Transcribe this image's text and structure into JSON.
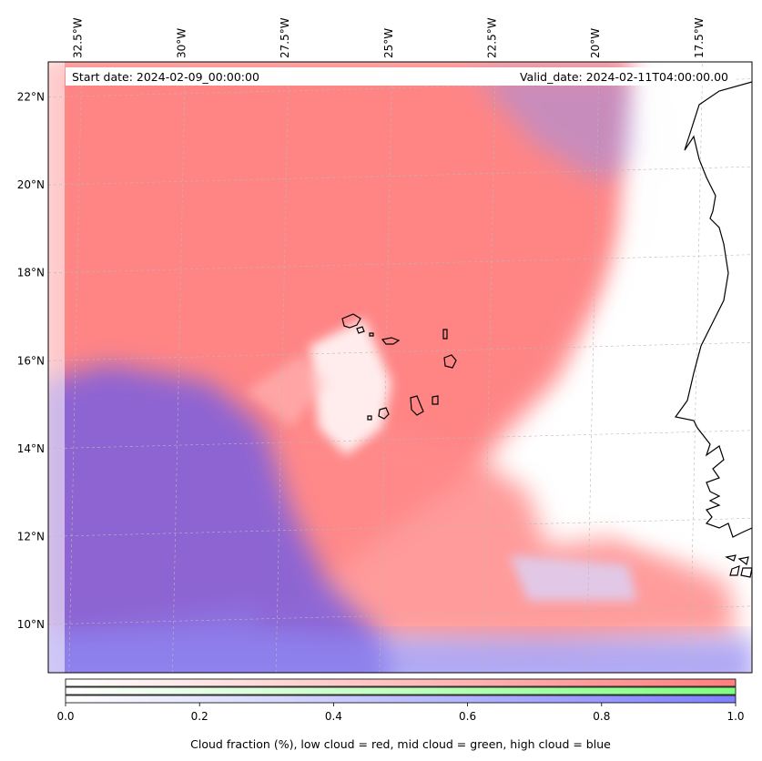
{
  "map": {
    "projection": "plate-carree",
    "lon_range": [
      -33,
      -16
    ],
    "lat_range": [
      8.9,
      22.8
    ],
    "lon_ticks": [
      {
        "value": -32.5,
        "label": "32.5°W"
      },
      {
        "value": -30,
        "label": "30°W"
      },
      {
        "value": -27.5,
        "label": "27.5°W"
      },
      {
        "value": -25,
        "label": "25°W"
      },
      {
        "value": -22.5,
        "label": "22.5°W"
      },
      {
        "value": -20,
        "label": "20°W"
      },
      {
        "value": -17.5,
        "label": "17.5°W"
      }
    ],
    "lat_ticks": [
      {
        "value": 22,
        "label": "22°N"
      },
      {
        "value": 20,
        "label": "20°N"
      },
      {
        "value": 18,
        "label": "18°N"
      },
      {
        "value": 16,
        "label": "16°N"
      },
      {
        "value": 14,
        "label": "14°N"
      },
      {
        "value": 12,
        "label": "12°N"
      },
      {
        "value": 10,
        "label": "10°N"
      }
    ],
    "gridlines": true,
    "start_date": "Start date: 2024-02-09_00:00:00",
    "valid_date": "Valid_date: 2024-02-11T04:00:00.00",
    "colors": {
      "low_cloud": "#ff7f7f",
      "mid_cloud": "#7fff7f",
      "high_cloud": "#7f7fff"
    }
  },
  "colorbar": {
    "ticks": [
      {
        "value": 0.0,
        "label": "0.0"
      },
      {
        "value": 0.2,
        "label": "0.2"
      },
      {
        "value": 0.4,
        "label": "0.4"
      },
      {
        "value": 0.6,
        "label": "0.6"
      },
      {
        "value": 0.8,
        "label": "0.8"
      },
      {
        "value": 1.0,
        "label": "1.0"
      }
    ],
    "range": [
      0,
      1
    ],
    "caption": "Cloud fraction (%), low cloud = red, mid cloud = green, high cloud = blue"
  }
}
